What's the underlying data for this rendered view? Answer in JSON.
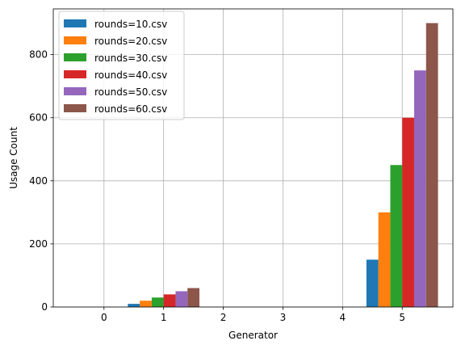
{
  "chart_data": {
    "type": "bar",
    "xlabel": "Generator",
    "ylabel": "Usage Count",
    "x_ticks": [
      0,
      1,
      2,
      3,
      4,
      5
    ],
    "y_ticks": [
      0,
      200,
      400,
      600,
      800
    ],
    "xlim": [
      -0.85,
      5.85
    ],
    "ylim": [
      0,
      945
    ],
    "grid": true,
    "legend_position": "top-left",
    "series": [
      {
        "name": "rounds=10.csv",
        "color": "#1f77b4",
        "points": [
          {
            "x": 1,
            "y": 10
          },
          {
            "x": 5,
            "y": 150
          }
        ]
      },
      {
        "name": "rounds=20.csv",
        "color": "#ff7f0e",
        "points": [
          {
            "x": 1,
            "y": 20
          },
          {
            "x": 5,
            "y": 300
          }
        ]
      },
      {
        "name": "rounds=30.csv",
        "color": "#2ca02c",
        "points": [
          {
            "x": 1,
            "y": 30
          },
          {
            "x": 5,
            "y": 450
          }
        ]
      },
      {
        "name": "rounds=40.csv",
        "color": "#d62728",
        "points": [
          {
            "x": 1,
            "y": 40
          },
          {
            "x": 5,
            "y": 600
          }
        ]
      },
      {
        "name": "rounds=50.csv",
        "color": "#9467bd",
        "points": [
          {
            "x": 1,
            "y": 50
          },
          {
            "x": 5,
            "y": 750
          }
        ]
      },
      {
        "name": "rounds=60.csv",
        "color": "#8c564b",
        "points": [
          {
            "x": 1,
            "y": 60
          },
          {
            "x": 5,
            "y": 900
          }
        ]
      }
    ]
  }
}
